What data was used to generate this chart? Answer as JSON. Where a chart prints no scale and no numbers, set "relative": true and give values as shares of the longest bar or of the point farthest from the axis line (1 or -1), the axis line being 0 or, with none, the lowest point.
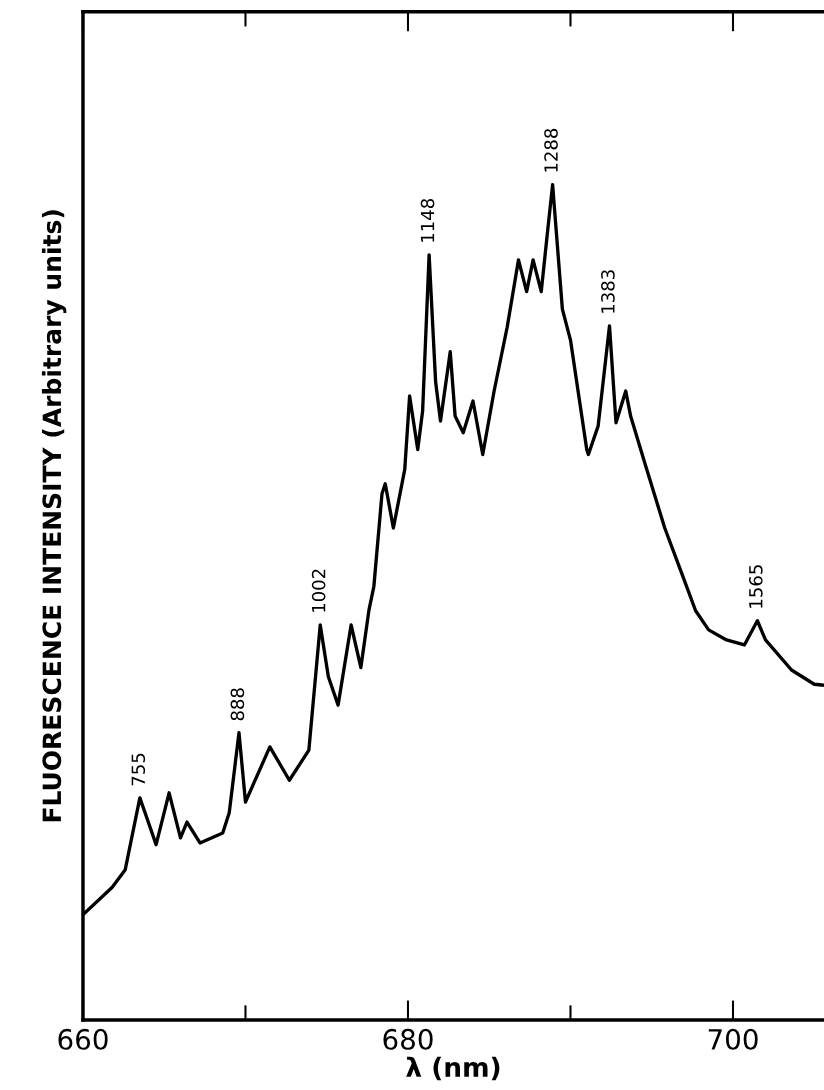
{
  "chart_data": {
    "type": "line",
    "relative": true,
    "xlabel": "λ (nm)",
    "ylabel": "FLUORESCENCE INTENSITY (Arbitrary units)",
    "xlim": [
      660,
      705.6
    ],
    "xticks": [
      660,
      {
        "value": 670,
        "label": null
      },
      680,
      {
        "value": 690,
        "label": null
      },
      700
    ],
    "grid": false,
    "legend": false,
    "marker": "none",
    "line_style": "solid",
    "series": [
      {
        "color": "#000000",
        "x": [
          660.1,
          661.8,
          662.6,
          663.5,
          664.5,
          665.3,
          666.0,
          666.4,
          667.2,
          668.6,
          669.0,
          669.6,
          670.0,
          671.5,
          672.7,
          673.9,
          674.6,
          675.1,
          675.7,
          676.5,
          677.1,
          677.6,
          677.9,
          678.4,
          678.6,
          679.1,
          679.8,
          680.1,
          680.6,
          680.9,
          681.3,
          681.7,
          682.0,
          682.6,
          682.9,
          683.4,
          684.0,
          684.6,
          685.3,
          686.1,
          686.8,
          687.3,
          687.7,
          688.2,
          688.6,
          688.9,
          689.5,
          690.0,
          691.0,
          691.1,
          691.7,
          692.4,
          692.8,
          693.4,
          693.7,
          694.6,
          695.8,
          696.8,
          697.7,
          698.5,
          699.6,
          700.7,
          701.5,
          702.0,
          703.6,
          705.0,
          705.5
        ],
        "values": [
          0.128,
          0.159,
          0.18,
          0.266,
          0.21,
          0.272,
          0.218,
          0.237,
          0.212,
          0.224,
          0.248,
          0.344,
          0.261,
          0.327,
          0.287,
          0.323,
          0.473,
          0.411,
          0.377,
          0.473,
          0.422,
          0.491,
          0.519,
          0.63,
          0.642,
          0.589,
          0.659,
          0.747,
          0.683,
          0.729,
          0.916,
          0.764,
          0.717,
          0.8,
          0.723,
          0.703,
          0.741,
          0.677,
          0.753,
          0.829,
          0.91,
          0.872,
          0.91,
          0.872,
          0.946,
          1.0,
          0.851,
          0.814,
          0.683,
          0.677,
          0.711,
          0.831,
          0.715,
          0.753,
          0.723,
          0.665,
          0.589,
          0.537,
          0.49,
          0.467,
          0.455,
          0.449,
          0.478,
          0.455,
          0.419,
          0.402,
          0.401
        ]
      }
    ],
    "annotations": [
      {
        "text": "755",
        "x": 663.5,
        "y": 0.266
      },
      {
        "text": "888",
        "x": 669.6,
        "y": 0.344
      },
      {
        "text": "1002",
        "x": 674.6,
        "y": 0.473
      },
      {
        "text": "1148",
        "x": 681.3,
        "y": 0.916
      },
      {
        "text": "1288",
        "x": 688.9,
        "y": 1.0
      },
      {
        "text": "1383",
        "x": 692.4,
        "y": 0.831
      },
      {
        "text": "1565",
        "x": 701.5,
        "y": 0.478
      }
    ]
  }
}
